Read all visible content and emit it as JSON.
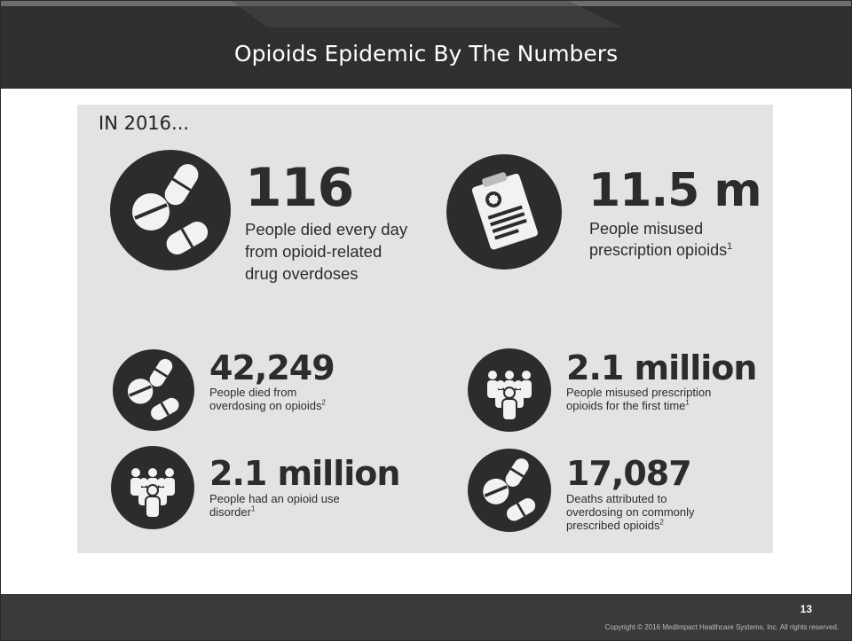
{
  "slide": {
    "title": "Opioids Epidemic By The Numbers",
    "page_number": "13",
    "copyright": "Copyright © 2016 MedImpact Healthcare Systems, Inc. All rights reserved."
  },
  "infographic": {
    "intro": "IN 2016...",
    "stats": [
      {
        "number": "116",
        "text": "People died every day\nfrom opioid-related\ndrug overdoses",
        "footnote": "",
        "icon": "pills-icon"
      },
      {
        "number": "11.5 m",
        "text": "People misused\nprescription opioids",
        "footnote": "1",
        "icon": "clipboard-prescription-icon"
      },
      {
        "number": "42,249",
        "text": "People died from\noverdosing on opioids",
        "footnote": "2",
        "icon": "pills-icon"
      },
      {
        "number": "2.1 million",
        "text": "People misused prescription\nopioids for the first time",
        "footnote": "1",
        "icon": "people-group-icon"
      },
      {
        "number": "2.1 million",
        "text": "People had an opioid use\ndisorder",
        "footnote": "1",
        "icon": "people-group-icon"
      },
      {
        "number": "17,087",
        "text": "Deaths attributed to\noverdosing on commonly\nprescribed opioids",
        "footnote": "2",
        "icon": "pills-icon"
      }
    ]
  },
  "colors": {
    "header_bg": "#2f2f2f",
    "panel_bg": "#e3e3e3",
    "icon_circle": "#2c2c2c",
    "icon_fg": "#f2f2f2",
    "footer_bg": "#3a3a3a"
  }
}
